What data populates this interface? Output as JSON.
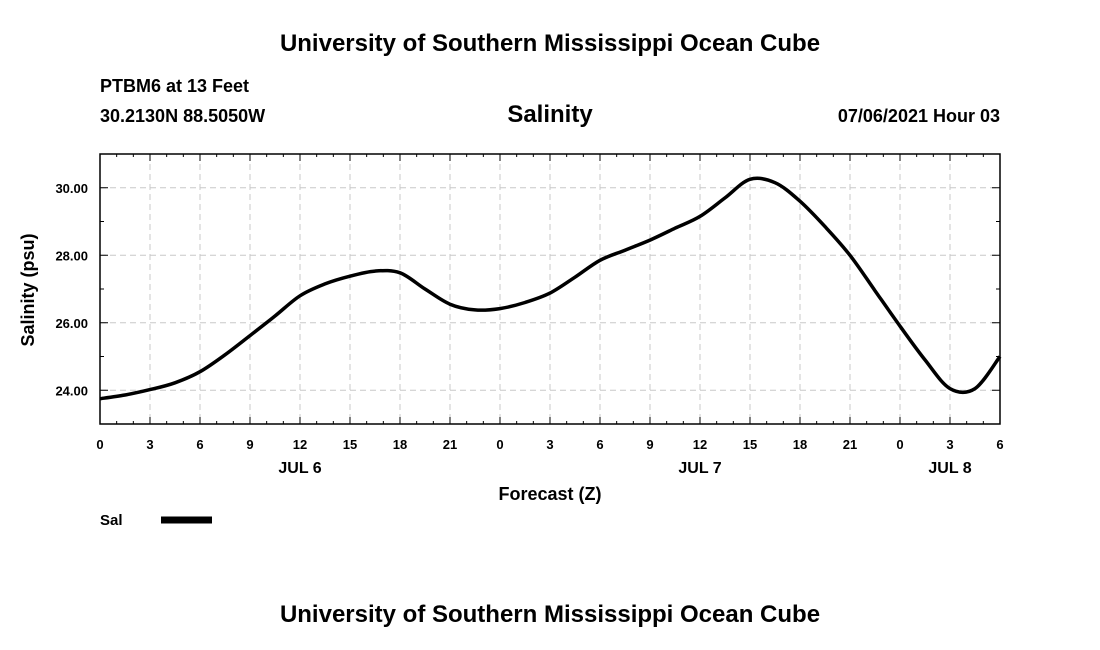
{
  "header": {
    "title": "University of Southern Mississippi Ocean Cube",
    "station": "PTBM6 at 13 Feet",
    "coords": "30.2130N  88.5050W",
    "variable": "Salinity",
    "timestamp": "07/06/2021 Hour 03"
  },
  "footer": {
    "title": "University of Southern Mississippi Ocean Cube"
  },
  "chart_data": {
    "type": "line",
    "xlabel": "Forecast (Z)",
    "ylabel": "Salinity (psu)",
    "ylim": [
      23.0,
      31.0
    ],
    "xlim": [
      0,
      54
    ],
    "y_ticks": [
      "24.00",
      "26.00",
      "28.00",
      "30.00"
    ],
    "y_tick_values": [
      24,
      26,
      28,
      30
    ],
    "x_ticks": [
      "0",
      "3",
      "6",
      "9",
      "12",
      "15",
      "18",
      "21",
      "0",
      "3",
      "6",
      "9",
      "12",
      "15",
      "18",
      "21",
      "0",
      "3",
      "6"
    ],
    "x_tick_values": [
      0,
      3,
      6,
      9,
      12,
      15,
      18,
      21,
      24,
      27,
      30,
      33,
      36,
      39,
      42,
      45,
      48,
      51,
      54
    ],
    "date_labels": [
      {
        "label": "JUL 6",
        "x": 12
      },
      {
        "label": "JUL 7",
        "x": 36
      },
      {
        "label": "JUL 8",
        "x": 51
      }
    ],
    "grid": true,
    "legend": {
      "placement": "bottom-left",
      "color": "#000000"
    },
    "series": [
      {
        "name": "Sal",
        "x": [
          0,
          1.5,
          3,
          4.5,
          6,
          7.5,
          9,
          10.5,
          12,
          13.5,
          15,
          16.5,
          18,
          19.5,
          21,
          22.5,
          24,
          25.5,
          27,
          28.5,
          30,
          31.5,
          33,
          34.5,
          36,
          37.5,
          39,
          40.5,
          42,
          43.5,
          45,
          46.5,
          48,
          49.5,
          51,
          52.5,
          54
        ],
        "values": [
          23.75,
          23.86,
          24.02,
          24.22,
          24.55,
          25.05,
          25.62,
          26.2,
          26.8,
          27.15,
          27.38,
          27.53,
          27.48,
          27.0,
          26.55,
          26.38,
          26.42,
          26.6,
          26.88,
          27.35,
          27.85,
          28.15,
          28.45,
          28.8,
          29.15,
          29.7,
          30.25,
          30.15,
          29.6,
          28.85,
          28.0,
          26.95,
          25.9,
          24.9,
          24.05,
          24.05,
          25.0
        ]
      }
    ]
  }
}
